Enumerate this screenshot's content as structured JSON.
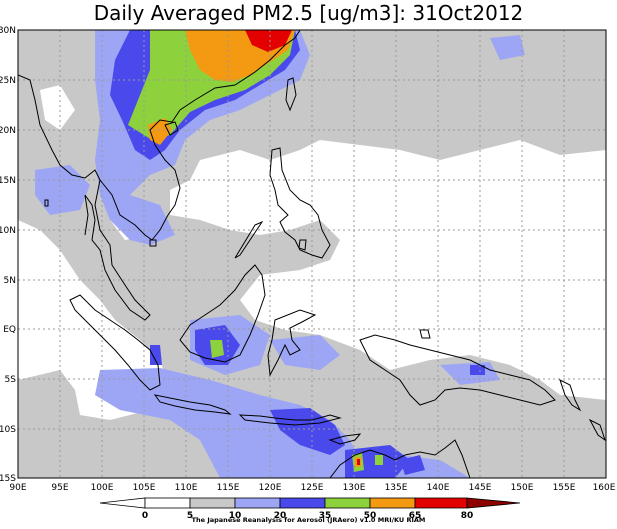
{
  "title": "Daily Averaged PM2.5 [ug/m3]: 31Oct2012",
  "axes": {
    "lon_ticks": [
      "90E",
      "95E",
      "100E",
      "105E",
      "110E",
      "115E",
      "120E",
      "125E",
      "130E",
      "135E",
      "140E",
      "145E",
      "150E",
      "155E",
      "160E"
    ],
    "lat_ticks": [
      "30N",
      "25N",
      "20N",
      "15N",
      "10N",
      "5N",
      "EQ",
      "5S",
      "10S",
      "15S"
    ]
  },
  "colorbar": {
    "levels": [
      "0",
      "5",
      "10",
      "20",
      "35",
      "50",
      "65",
      "80"
    ],
    "colors": [
      "#ffffff",
      "#ffffff",
      "#c8c8c8",
      "#9da6f5",
      "#4a4aec",
      "#8dd23c",
      "#f39a12",
      "#e20000",
      "#8c0000"
    ]
  },
  "credit": "The Japanese Reanalysis for Aerosol (JRAero) v1.0 MRI/KU RIAM"
}
